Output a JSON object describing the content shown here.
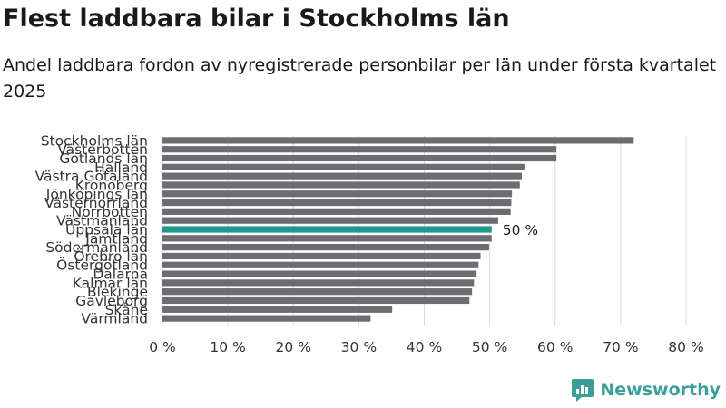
{
  "title": "Flest laddbara bilar i Stockholms län",
  "subtitle": "Andel laddbara fordon av nyregistrerade personbilar per län under första kvartalet 2025",
  "brand": "Newsworthy",
  "colors": {
    "bar": "#6d6c70",
    "highlight": "#1d9a8b",
    "grid": "#dcdcdc",
    "brand": "#3a9f96"
  },
  "chart_data": {
    "type": "bar",
    "orientation": "horizontal",
    "categories": [
      "Stockholms län",
      "Västerbotten",
      "Gotlands län",
      "Halland",
      "Västra Götaland",
      "Kronoberg",
      "Jönköpings län",
      "Västernorrland",
      "Norrbotten",
      "Västmanland",
      "Uppsala län",
      "Jämtland",
      "Södermanland",
      "Örebro län",
      "Östergötland",
      "Dalarna",
      "Kalmar län",
      "Blekinge",
      "Gävleborg",
      "Skåne",
      "Värmland"
    ],
    "values": [
      72,
      60.2,
      60.2,
      55.3,
      54.9,
      54.6,
      53.4,
      53.3,
      53.2,
      51.3,
      50.3,
      50.3,
      49.9,
      48.6,
      48.3,
      48.0,
      47.6,
      47.3,
      46.9,
      35.1,
      31.8
    ],
    "highlight": {
      "category": "Uppsala län",
      "label": "50 %"
    },
    "xlim": [
      0,
      80
    ],
    "xticks": [
      "0 %",
      "10 %",
      "20 %",
      "30 %",
      "40 %",
      "50 %",
      "60 %",
      "70 %",
      "80 %"
    ],
    "xlabel": "",
    "ylabel": "",
    "grid": true
  }
}
